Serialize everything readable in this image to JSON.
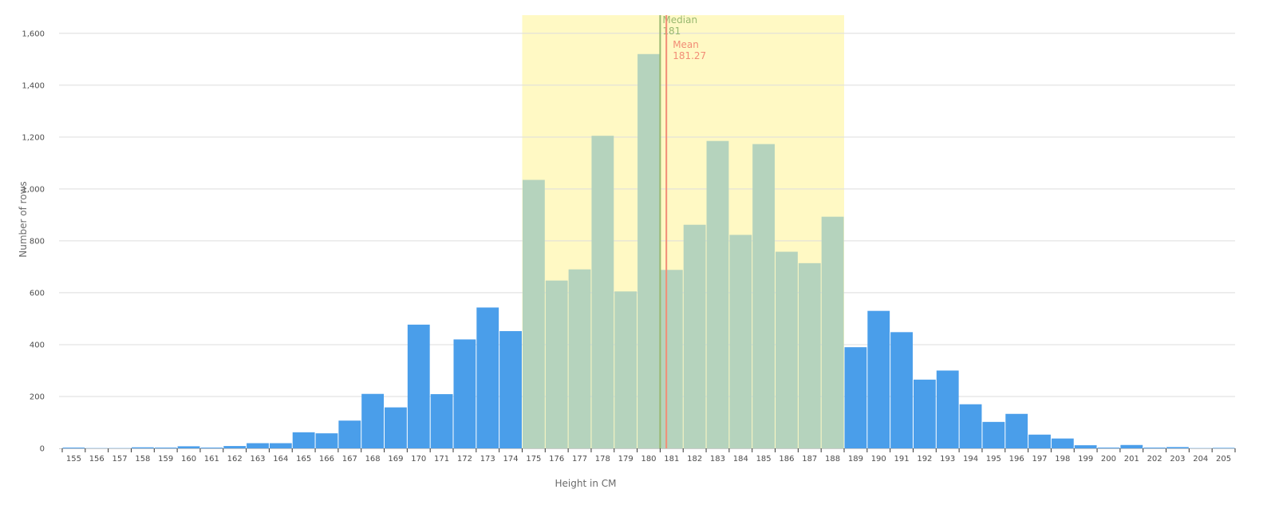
{
  "chart_data": {
    "type": "bar",
    "title": "",
    "xlabel": "Height in CM",
    "ylabel": "Number of rows",
    "ylim": [
      0,
      1670
    ],
    "yticks": [
      0,
      200,
      400,
      600,
      800,
      1000,
      1200,
      1400,
      1600
    ],
    "ytick_labels": [
      "0",
      "200",
      "400",
      "600",
      "800",
      "1,000",
      "1,200",
      "1,400",
      "1,600"
    ],
    "categories": [
      "155",
      "156",
      "157",
      "158",
      "159",
      "160",
      "161",
      "162",
      "163",
      "164",
      "165",
      "166",
      "167",
      "168",
      "169",
      "170",
      "171",
      "172",
      "173",
      "174",
      "175",
      "176",
      "177",
      "178",
      "179",
      "180",
      "181",
      "182",
      "183",
      "184",
      "185",
      "186",
      "187",
      "188",
      "189",
      "190",
      "191",
      "192",
      "193",
      "194",
      "195",
      "196",
      "197",
      "198",
      "199",
      "200",
      "201",
      "202",
      "203",
      "204",
      "205"
    ],
    "values": [
      3,
      1,
      1,
      4,
      3,
      8,
      3,
      9,
      20,
      20,
      62,
      58,
      107,
      210,
      158,
      477,
      209,
      420,
      543,
      452,
      1035,
      647,
      690,
      1205,
      605,
      1520,
      688,
      862,
      1185,
      823,
      1173,
      758,
      714,
      893,
      390,
      530,
      448,
      265,
      300,
      170,
      102,
      133,
      53,
      38,
      12,
      3,
      13,
      3,
      5,
      1,
      2
    ],
    "grid": true,
    "colors": {
      "bar": "#4a9eea",
      "highlight_bar": "#b5d3bd",
      "highlight_band": "#fff9c4",
      "median_line": "#98b86f",
      "mean_line": "#f28d76",
      "gridline": "#dddddd"
    },
    "highlight_range": [
      "175",
      "188"
    ],
    "markers": [
      {
        "name": "Median",
        "value": 181,
        "label": "181",
        "line_position": 180.5,
        "color": "#98b86f"
      },
      {
        "name": "Mean",
        "value": 181.27,
        "label": "181.27",
        "line_position": 180.77,
        "color": "#f28d76"
      }
    ]
  }
}
